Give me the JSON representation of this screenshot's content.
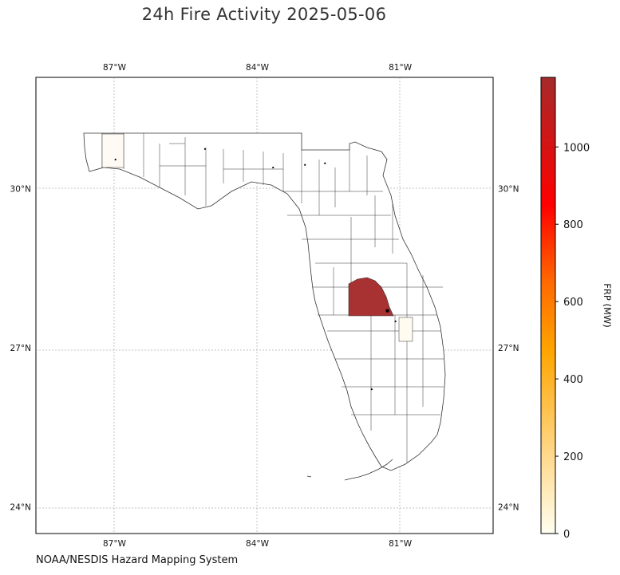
{
  "title": "24h Fire Activity 2025-05-06",
  "credit": "NOAA/NESDIS Hazard Mapping System",
  "map": {
    "region": "Florida",
    "lon_range": [
      -88.65,
      -79.05
    ],
    "lat_range": [
      23.5,
      32.1
    ],
    "lon_ticks": [
      {
        "value": -87,
        "label": "87°W"
      },
      {
        "value": -84,
        "label": "84°W"
      },
      {
        "value": -81,
        "label": "81°W"
      }
    ],
    "lat_ticks": [
      {
        "value": 30,
        "label": "30°N"
      },
      {
        "value": 27,
        "label": "27°N"
      },
      {
        "value": 24,
        "label": "24°N"
      }
    ],
    "gridlines": true,
    "highlight_county_color": "#a83232",
    "fire_points": [
      {
        "lon": -81.27,
        "lat": 27.7,
        "frp": 1150
      },
      {
        "lon": -86.98,
        "lat": 30.55,
        "frp": 20
      },
      {
        "lon": -85.1,
        "lat": 30.75,
        "frp": 10
      },
      {
        "lon": -83.67,
        "lat": 30.4,
        "frp": 8
      },
      {
        "lon": -83.0,
        "lat": 30.45,
        "frp": 12
      },
      {
        "lon": -82.58,
        "lat": 30.48,
        "frp": 6
      },
      {
        "lon": -81.6,
        "lat": 26.22,
        "frp": 8
      },
      {
        "lon": -81.1,
        "lat": 27.5,
        "frp": 15
      }
    ]
  },
  "colorbar": {
    "label": "FRP (MW)",
    "min": 0,
    "max": 1180,
    "ticks": [
      {
        "value": 0,
        "label": "0"
      },
      {
        "value": 200,
        "label": "200"
      },
      {
        "value": 400,
        "label": "400"
      },
      {
        "value": 600,
        "label": "600"
      },
      {
        "value": 800,
        "label": "800"
      },
      {
        "value": 1000,
        "label": "1000"
      }
    ],
    "colors": [
      "#fffff0",
      "#ffd27a",
      "#ffa500",
      "#ff6a00",
      "#ff0000",
      "#a52a2a"
    ]
  }
}
